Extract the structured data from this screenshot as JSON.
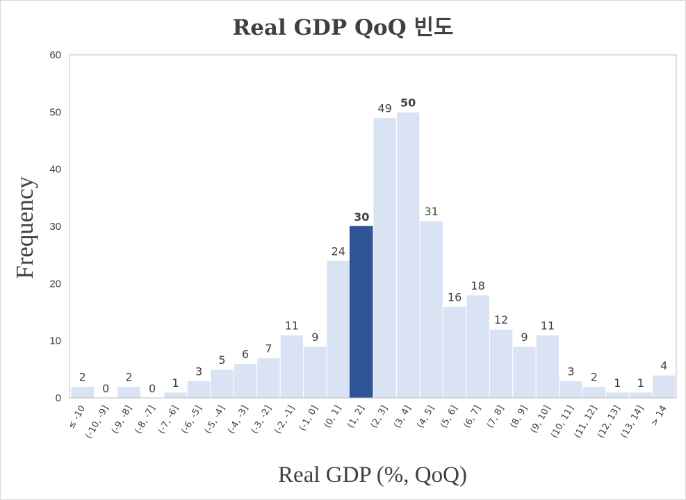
{
  "chart_data": {
    "type": "bar",
    "title": "Real GDP QoQ 빈도",
    "xlabel": "Real GDP (%, QoQ)",
    "ylabel": "Frequency",
    "ylim": [
      0,
      60
    ],
    "yticks": [
      0,
      10,
      20,
      30,
      40,
      50,
      60
    ],
    "grid": false,
    "categories": [
      "≤ -10",
      "(-10, -9]",
      "(-9, -8]",
      "(-8, -7]",
      "(-7, -6]",
      "(-6, -5]",
      "(-5, -4]",
      "(-4, -3]",
      "(-3, -2]",
      "(-2, -1]",
      "(-1, 0]",
      "(0, 1]",
      "(1, 2]",
      "(2, 3]",
      "(3, 4]",
      "(4, 5]",
      "(5, 6]",
      "(6, 7]",
      "(7, 8]",
      "(8, 9]",
      "(9, 10]",
      "(10, 11]",
      "(11, 12]",
      "(12, 13]",
      "(13, 14]",
      "> 14"
    ],
    "values": [
      2,
      0,
      2,
      0,
      1,
      3,
      5,
      6,
      7,
      11,
      9,
      24,
      30,
      49,
      50,
      31,
      16,
      18,
      12,
      9,
      11,
      3,
      2,
      1,
      1,
      4
    ],
    "highlight_index": 12,
    "bold_label_indices": [
      12,
      14
    ],
    "colors": {
      "bar": "#dae3f3",
      "highlight": "#2f5597",
      "bar_edge": "#ffffff",
      "axis": "#bfbfbf",
      "text": "#404040"
    }
  }
}
